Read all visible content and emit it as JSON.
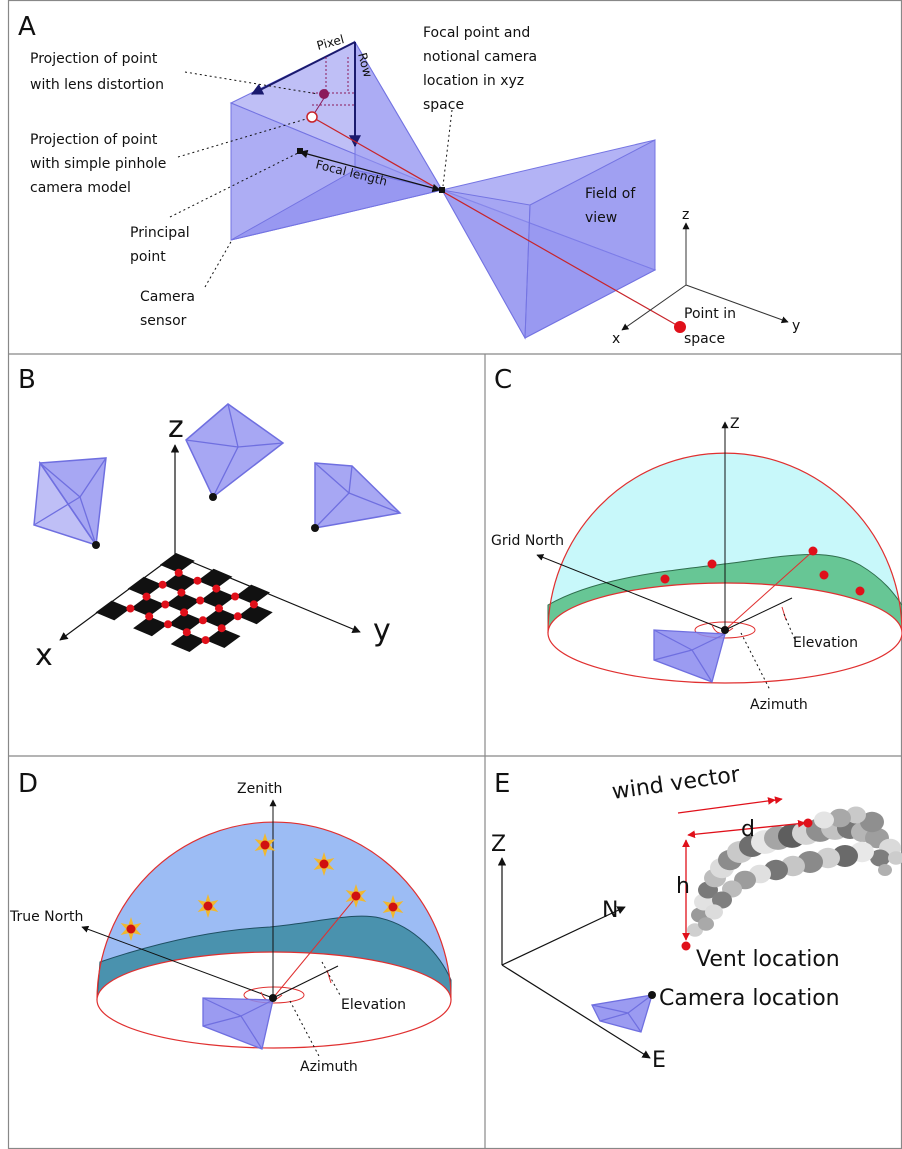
{
  "panels": {
    "A": {
      "letter": "A",
      "labels": {
        "lens_distortion_l1": "Projection of point",
        "lens_distortion_l2": "with lens distortion",
        "pinhole_l1": "Projection of point",
        "pinhole_l2": "with simple pinhole",
        "pinhole_l3": "camera model",
        "principal_l1": "Principal",
        "principal_l2": "point",
        "sensor_l1": "Camera",
        "sensor_l2": "sensor",
        "pixel": "Pixel",
        "row": "Row",
        "focal_length": "Focal length",
        "focal_point_l1": "Focal point and",
        "focal_point_l2": "notional camera",
        "focal_point_l3": "location in xyz",
        "focal_point_l4": "space",
        "fov_l1": "Field of",
        "fov_l2": "view",
        "point_l1": "Point in",
        "point_l2": "space",
        "axis_x": "x",
        "axis_y": "y",
        "axis_z": "z"
      }
    },
    "B": {
      "letter": "B",
      "labels": {
        "axis_x": "x",
        "axis_y": "y",
        "axis_z": "z"
      }
    },
    "C": {
      "letter": "C",
      "labels": {
        "axis_z": "Z",
        "grid_north": "Grid North",
        "elevation": "Elevation",
        "azimuth": "Azimuth"
      }
    },
    "D": {
      "letter": "D",
      "labels": {
        "zenith": "Zenith",
        "true_north": "True North",
        "elevation": "Elevation",
        "azimuth": "Azimuth"
      }
    },
    "E": {
      "letter": "E",
      "labels": {
        "wind_vector": "wind vector",
        "d": "d",
        "h": "h",
        "axis_z": "Z",
        "axis_n": "N",
        "axis_e": "E",
        "vent_location": "Vent location",
        "camera_location": "Camera location"
      }
    }
  },
  "colors": {
    "frustum_fill": "#8a8aef",
    "frustum_stroke": "#6f6fe0",
    "red_point": "#e0101a",
    "dark_red": "#8b1a5a",
    "sky_cyan": "#c8f8fa",
    "terrain_green": "#5cc08a",
    "sky_blue": "#9cbcf4",
    "terrain_teal": "#4a92ae",
    "star_gold": "#f0b830",
    "border_gray": "#888888"
  }
}
